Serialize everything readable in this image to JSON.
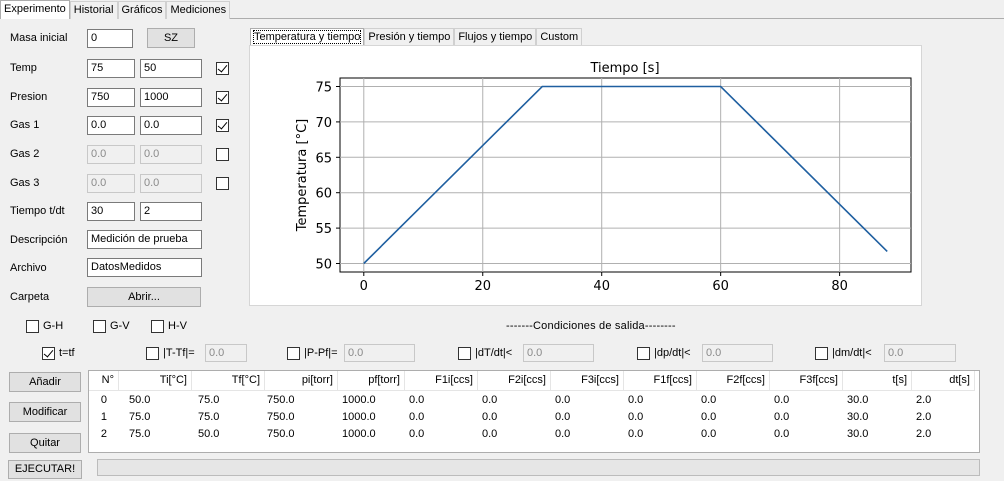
{
  "main_tabs": [
    "Experimento",
    "Historial",
    "Gráficos",
    "Mediciones"
  ],
  "form": {
    "masa_label": "Masa inicial",
    "masa_value": "0",
    "sz_button": "SZ",
    "temp_label": "Temp",
    "temp_a": "75",
    "temp_b": "50",
    "presion_label": "Presion",
    "presion_a": "750",
    "presion_b": "1000",
    "gas1_label": "Gas 1",
    "gas1_a": "0.0",
    "gas1_b": "0.0",
    "gas2_label": "Gas 2",
    "gas2_a": "0.0",
    "gas2_b": "0.0",
    "gas3_label": "Gas 3",
    "gas3_a": "0.0",
    "gas3_b": "0.0",
    "tiempo_label": "Tiempo t/dt",
    "tiempo_a": "30",
    "tiempo_b": "2",
    "descripcion_label": "Descripción",
    "descripcion_value": "Medición de prueba",
    "archivo_label": "Archivo",
    "archivo_value": "DatosMedidos",
    "carpeta_label": "Carpeta",
    "abrir_button": "Abrir...",
    "checks": {
      "temp": true,
      "presion": true,
      "gas1": true,
      "gas2": false,
      "gas3": false
    }
  },
  "plot_tabs": [
    "Temperatura y tiempo",
    "Presión y tiempo",
    "Flujos y tiempo",
    "Custom"
  ],
  "views": {
    "gh": "G-H",
    "gv": "G-V",
    "hv": "H-V"
  },
  "condiciones_label": "-------Condiciones de salida--------",
  "conditions": [
    {
      "label": "t=tf",
      "checked": true,
      "value": null
    },
    {
      "label": "|T-Tf|=",
      "checked": false,
      "value": "0.0"
    },
    {
      "label": "|P-Pf|=",
      "checked": false,
      "value": "0.0"
    },
    {
      "label": "|dT/dt|<",
      "checked": false,
      "value": "0.0"
    },
    {
      "label": "|dp/dt|<",
      "checked": false,
      "value": "0.0"
    },
    {
      "label": "|dm/dt|<",
      "checked": false,
      "value": "0.0"
    }
  ],
  "buttons": {
    "anadir": "Añadir",
    "modificar": "Modificar",
    "quitar": "Quitar",
    "ejecutar": "EJECUTAR!"
  },
  "table": {
    "headers": [
      "N°",
      "Ti[°C]",
      "Tf[°C]",
      "pi[torr]",
      "pf[torr]",
      "F1i[ccs]",
      "F2i[ccs]",
      "F3i[ccs]",
      "F1f[ccs]",
      "F2f[ccs]",
      "F3f[ccs]",
      "t[s]",
      "dt[s]"
    ],
    "rows": [
      [
        "0",
        "50.0",
        "75.0",
        "750.0",
        "1000.0",
        "0.0",
        "0.0",
        "0.0",
        "0.0",
        "0.0",
        "0.0",
        "30.0",
        "2.0"
      ],
      [
        "1",
        "75.0",
        "75.0",
        "750.0",
        "1000.0",
        "0.0",
        "0.0",
        "0.0",
        "0.0",
        "0.0",
        "0.0",
        "30.0",
        "2.0"
      ],
      [
        "2",
        "75.0",
        "50.0",
        "750.0",
        "1000.0",
        "0.0",
        "0.0",
        "0.0",
        "0.0",
        "0.0",
        "0.0",
        "30.0",
        "2.0"
      ]
    ]
  },
  "chart_data": {
    "type": "line",
    "title": "Tiempo [s]",
    "xlabel": "",
    "ylabel": "Temperatura [°C]",
    "xlim": [
      -4,
      92
    ],
    "ylim": [
      48.8,
      76.2
    ],
    "xticks": [
      0,
      20,
      40,
      60,
      80
    ],
    "yticks": [
      50,
      55,
      60,
      65,
      70,
      75
    ],
    "grid": true,
    "color": "#1f5fa0",
    "series": [
      {
        "x": [
          0,
          30,
          60,
          88
        ],
        "y": [
          50,
          75,
          75,
          51.7
        ]
      }
    ]
  }
}
